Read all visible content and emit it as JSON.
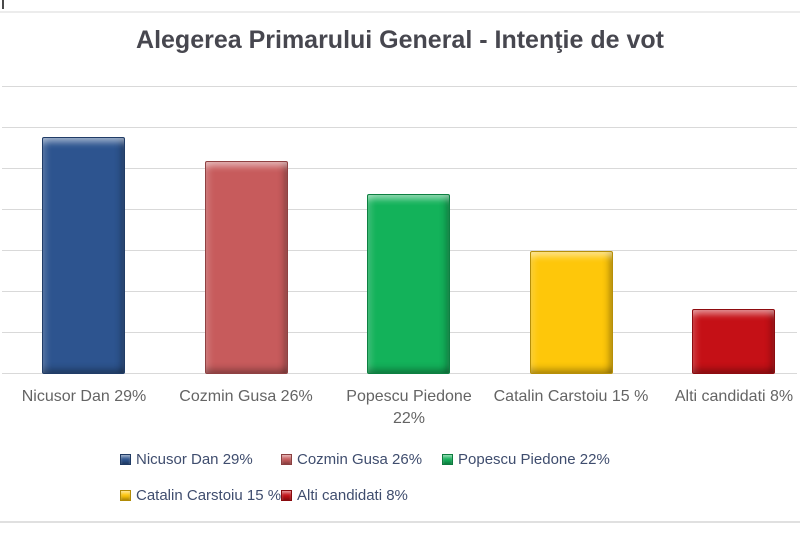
{
  "title": "Alegerea Primarului General - Intenţie de vot",
  "chart_data": {
    "type": "bar",
    "title": "Alegerea Primarului General - Intenţie de vot",
    "categories": [
      "Nicusor Dan 29%",
      "Cozmin Gusa 26%",
      "Popescu Piedone 22%",
      "Catalin Carstoiu 15 %",
      "Alti candidati 8%"
    ],
    "values": [
      29,
      26,
      22,
      15,
      8
    ],
    "unit": "%",
    "colors": [
      "#2d548f",
      "#c75b5c",
      "#13b25a",
      "#fec70a",
      "#c51016"
    ],
    "ylim": [
      0,
      35.2
    ],
    "gridline_step_pct": 5,
    "gridline_count": 8,
    "grid": true,
    "y_axis_labels_visible": false,
    "xlabel": "",
    "ylabel": "",
    "legend_position": "bottom"
  },
  "axis": {
    "labels": [
      "Nicusor Dan 29%",
      "Cozmin Gusa 26%",
      "Popescu Piedone\n22%",
      "Catalin Carstoiu 15 %",
      "Alti candidati 8%"
    ]
  },
  "legend": {
    "rows": [
      [
        {
          "label": "Nicusor Dan 29%",
          "color": "#2d548f"
        },
        {
          "label": "Cozmin Gusa 26%",
          "color": "#c75b5c"
        },
        {
          "label": "Popescu Piedone 22%",
          "color": "#13b25a"
        }
      ],
      [
        {
          "label": "Catalin Carstoiu 15 %",
          "color": "#fec70a"
        },
        {
          "label": "Alti candidati 8%",
          "color": "#c51016"
        }
      ]
    ]
  },
  "colors": {
    "gridline": "#d9d9d9",
    "title_text": "#47474f",
    "category_text": "#646464",
    "legend_text": "#3f4d6e",
    "border_line": "#e0e0e0",
    "background": "#ffffff"
  }
}
